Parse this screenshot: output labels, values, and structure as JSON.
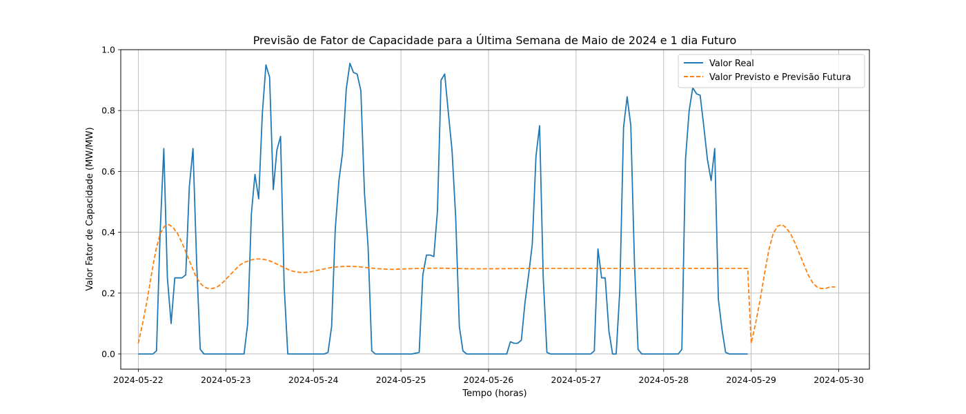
{
  "chart_data": {
    "type": "line",
    "title": "Previsão de Fator de Capacidade para a Última Semana de Maio de 2024 e 1 dia Futuro",
    "xlabel": "Tempo (horas)",
    "ylabel": "Valor Fator de Capacidade (MW/MW)",
    "xlim": [
      -0.2,
      8.35
    ],
    "ylim": [
      -0.05,
      1.0
    ],
    "grid": true,
    "legend_position": "top-right",
    "x_ticks": [
      0,
      1,
      2,
      3,
      4,
      5,
      6,
      7,
      8
    ],
    "x_tick_labels": [
      "2024-05-22",
      "2024-05-23",
      "2024-05-24",
      "2024-05-25",
      "2024-05-26",
      "2024-05-27",
      "2024-05-28",
      "2024-05-29",
      "2024-05-30"
    ],
    "y_ticks": [
      0.0,
      0.2,
      0.4,
      0.6,
      0.8,
      1.0
    ],
    "y_tick_labels": [
      "0.0",
      "0.2",
      "0.4",
      "0.6",
      "0.8",
      "1.0"
    ],
    "series": [
      {
        "name": "Valor Real",
        "color": "#1f77b4",
        "style": "solid",
        "points": [
          [
            0.0,
            0.0
          ],
          [
            0.083,
            0.0
          ],
          [
            0.167,
            0.0
          ],
          [
            0.208,
            0.01
          ],
          [
            0.25,
            0.4
          ],
          [
            0.292,
            0.675
          ],
          [
            0.333,
            0.25
          ],
          [
            0.375,
            0.1
          ],
          [
            0.417,
            0.25
          ],
          [
            0.458,
            0.25
          ],
          [
            0.5,
            0.25
          ],
          [
            0.542,
            0.26
          ],
          [
            0.583,
            0.55
          ],
          [
            0.625,
            0.675
          ],
          [
            0.667,
            0.3
          ],
          [
            0.708,
            0.015
          ],
          [
            0.75,
            0.0
          ],
          [
            0.875,
            0.0
          ],
          [
            1.0,
            0.0
          ],
          [
            1.125,
            0.0
          ],
          [
            1.208,
            0.0
          ],
          [
            1.25,
            0.1
          ],
          [
            1.292,
            0.46
          ],
          [
            1.333,
            0.59
          ],
          [
            1.375,
            0.51
          ],
          [
            1.417,
            0.79
          ],
          [
            1.458,
            0.95
          ],
          [
            1.5,
            0.91
          ],
          [
            1.542,
            0.54
          ],
          [
            1.583,
            0.67
          ],
          [
            1.625,
            0.715
          ],
          [
            1.667,
            0.22
          ],
          [
            1.708,
            0.0
          ],
          [
            1.875,
            0.0
          ],
          [
            2.0,
            0.0
          ],
          [
            2.125,
            0.0
          ],
          [
            2.167,
            0.005
          ],
          [
            2.208,
            0.09
          ],
          [
            2.25,
            0.41
          ],
          [
            2.292,
            0.57
          ],
          [
            2.333,
            0.66
          ],
          [
            2.375,
            0.87
          ],
          [
            2.417,
            0.955
          ],
          [
            2.458,
            0.925
          ],
          [
            2.5,
            0.92
          ],
          [
            2.542,
            0.865
          ],
          [
            2.583,
            0.53
          ],
          [
            2.625,
            0.35
          ],
          [
            2.667,
            0.01
          ],
          [
            2.708,
            0.0
          ],
          [
            2.875,
            0.0
          ],
          [
            3.0,
            0.0
          ],
          [
            3.125,
            0.0
          ],
          [
            3.208,
            0.005
          ],
          [
            3.25,
            0.26
          ],
          [
            3.292,
            0.325
          ],
          [
            3.333,
            0.325
          ],
          [
            3.375,
            0.32
          ],
          [
            3.417,
            0.47
          ],
          [
            3.458,
            0.9
          ],
          [
            3.5,
            0.92
          ],
          [
            3.542,
            0.79
          ],
          [
            3.583,
            0.67
          ],
          [
            3.625,
            0.45
          ],
          [
            3.667,
            0.09
          ],
          [
            3.708,
            0.01
          ],
          [
            3.75,
            0.0
          ],
          [
            3.875,
            0.0
          ],
          [
            4.0,
            0.0
          ],
          [
            4.125,
            0.0
          ],
          [
            4.208,
            0.0
          ],
          [
            4.25,
            0.04
          ],
          [
            4.292,
            0.035
          ],
          [
            4.333,
            0.035
          ],
          [
            4.375,
            0.045
          ],
          [
            4.417,
            0.17
          ],
          [
            4.458,
            0.26
          ],
          [
            4.5,
            0.36
          ],
          [
            4.542,
            0.65
          ],
          [
            4.583,
            0.75
          ],
          [
            4.625,
            0.25
          ],
          [
            4.667,
            0.005
          ],
          [
            4.708,
            0.0
          ],
          [
            4.875,
            0.0
          ],
          [
            5.0,
            0.0
          ],
          [
            5.125,
            0.0
          ],
          [
            5.167,
            0.0
          ],
          [
            5.208,
            0.01
          ],
          [
            5.25,
            0.345
          ],
          [
            5.292,
            0.25
          ],
          [
            5.333,
            0.25
          ],
          [
            5.375,
            0.075
          ],
          [
            5.417,
            0.0
          ],
          [
            5.458,
            0.0
          ],
          [
            5.5,
            0.21
          ],
          [
            5.542,
            0.745
          ],
          [
            5.583,
            0.845
          ],
          [
            5.625,
            0.75
          ],
          [
            5.667,
            0.3
          ],
          [
            5.708,
            0.015
          ],
          [
            5.75,
            0.0
          ],
          [
            5.875,
            0.0
          ],
          [
            6.0,
            0.0
          ],
          [
            6.125,
            0.0
          ],
          [
            6.167,
            0.0
          ],
          [
            6.208,
            0.015
          ],
          [
            6.25,
            0.64
          ],
          [
            6.292,
            0.8
          ],
          [
            6.333,
            0.875
          ],
          [
            6.375,
            0.855
          ],
          [
            6.417,
            0.85
          ],
          [
            6.458,
            0.75
          ],
          [
            6.5,
            0.64
          ],
          [
            6.542,
            0.57
          ],
          [
            6.583,
            0.675
          ],
          [
            6.625,
            0.18
          ],
          [
            6.667,
            0.08
          ],
          [
            6.708,
            0.005
          ],
          [
            6.75,
            0.0
          ],
          [
            6.875,
            0.0
          ],
          [
            6.96,
            0.0
          ]
        ]
      },
      {
        "name": "Valor Previsto e Previsão Futura",
        "color": "#ff7f0e",
        "style": "dashed",
        "points": [
          [
            0.0,
            0.035
          ],
          [
            0.05,
            0.1
          ],
          [
            0.1,
            0.175
          ],
          [
            0.15,
            0.26
          ],
          [
            0.2,
            0.34
          ],
          [
            0.25,
            0.395
          ],
          [
            0.3,
            0.42
          ],
          [
            0.35,
            0.425
          ],
          [
            0.4,
            0.415
          ],
          [
            0.45,
            0.395
          ],
          [
            0.5,
            0.365
          ],
          [
            0.55,
            0.33
          ],
          [
            0.6,
            0.295
          ],
          [
            0.65,
            0.26
          ],
          [
            0.7,
            0.235
          ],
          [
            0.75,
            0.22
          ],
          [
            0.8,
            0.215
          ],
          [
            0.85,
            0.215
          ],
          [
            0.9,
            0.22
          ],
          [
            0.95,
            0.23
          ],
          [
            1.0,
            0.245
          ],
          [
            1.05,
            0.26
          ],
          [
            1.1,
            0.275
          ],
          [
            1.15,
            0.29
          ],
          [
            1.2,
            0.3
          ],
          [
            1.25,
            0.305
          ],
          [
            1.3,
            0.31
          ],
          [
            1.35,
            0.312
          ],
          [
            1.4,
            0.312
          ],
          [
            1.45,
            0.31
          ],
          [
            1.5,
            0.306
          ],
          [
            1.55,
            0.3
          ],
          [
            1.6,
            0.293
          ],
          [
            1.65,
            0.286
          ],
          [
            1.7,
            0.279
          ],
          [
            1.75,
            0.273
          ],
          [
            1.8,
            0.27
          ],
          [
            1.85,
            0.268
          ],
          [
            1.9,
            0.268
          ],
          [
            1.95,
            0.269
          ],
          [
            2.0,
            0.272
          ],
          [
            2.1,
            0.278
          ],
          [
            2.2,
            0.284
          ],
          [
            2.3,
            0.287
          ],
          [
            2.4,
            0.288
          ],
          [
            2.5,
            0.287
          ],
          [
            2.6,
            0.284
          ],
          [
            2.7,
            0.281
          ],
          [
            2.8,
            0.279
          ],
          [
            2.9,
            0.278
          ],
          [
            3.0,
            0.279
          ],
          [
            3.2,
            0.281
          ],
          [
            3.4,
            0.282
          ],
          [
            3.6,
            0.281
          ],
          [
            3.8,
            0.28
          ],
          [
            4.0,
            0.28
          ],
          [
            4.5,
            0.281
          ],
          [
            5.0,
            0.281
          ],
          [
            5.5,
            0.281
          ],
          [
            6.0,
            0.281
          ],
          [
            6.5,
            0.281
          ],
          [
            6.96,
            0.281
          ],
          [
            7.0,
            0.035
          ],
          [
            7.05,
            0.1
          ],
          [
            7.1,
            0.175
          ],
          [
            7.15,
            0.26
          ],
          [
            7.2,
            0.34
          ],
          [
            7.25,
            0.395
          ],
          [
            7.3,
            0.42
          ],
          [
            7.35,
            0.425
          ],
          [
            7.4,
            0.415
          ],
          [
            7.45,
            0.395
          ],
          [
            7.5,
            0.365
          ],
          [
            7.55,
            0.33
          ],
          [
            7.6,
            0.295
          ],
          [
            7.65,
            0.26
          ],
          [
            7.7,
            0.235
          ],
          [
            7.75,
            0.22
          ],
          [
            7.8,
            0.215
          ],
          [
            7.85,
            0.215
          ],
          [
            7.9,
            0.22
          ],
          [
            7.96,
            0.22
          ]
        ]
      }
    ]
  }
}
